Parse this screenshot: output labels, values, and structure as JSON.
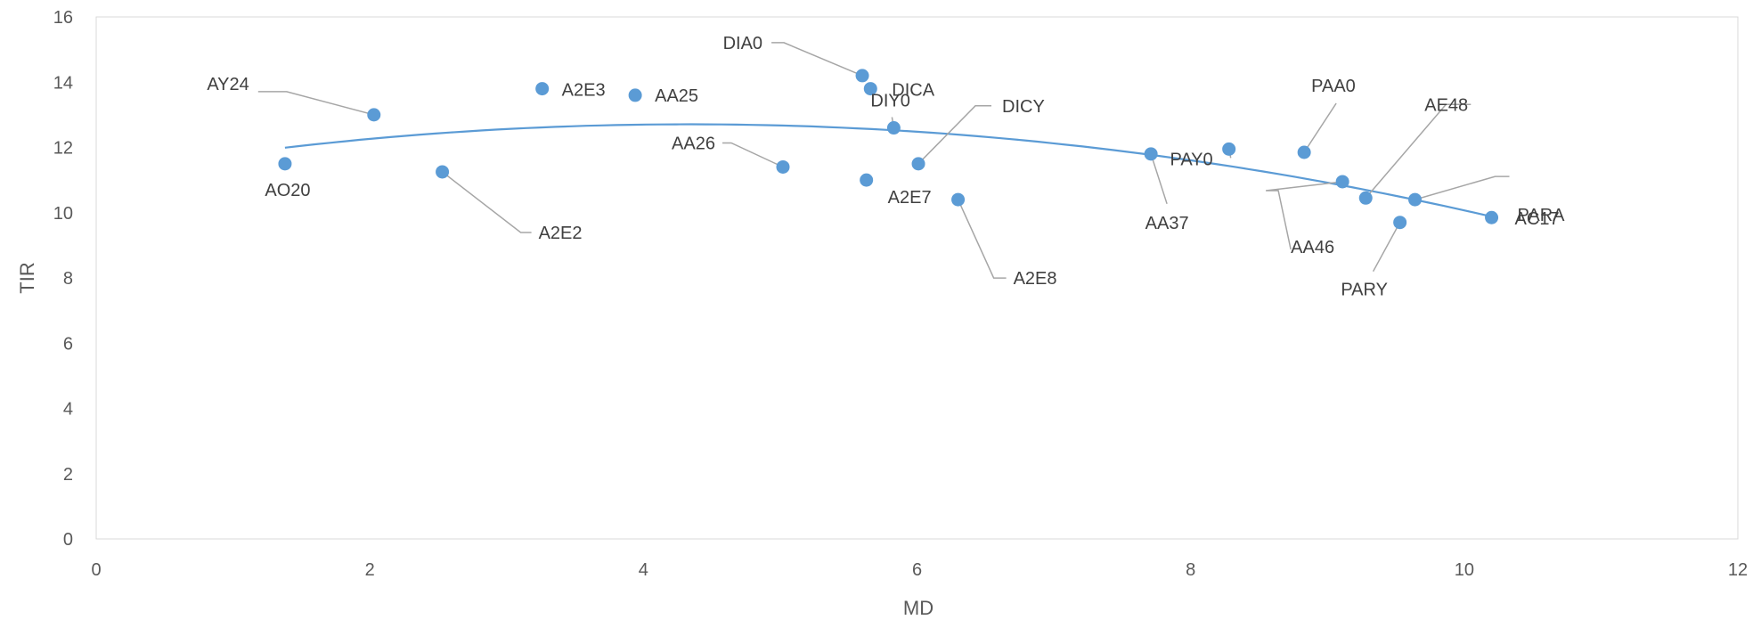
{
  "chart_data": {
    "type": "scatter",
    "title": "",
    "xlabel": "MD",
    "ylabel": "TIR",
    "xlim": [
      0,
      12
    ],
    "ylim": [
      0,
      16
    ],
    "x_ticks": [
      "0",
      "2",
      "4",
      "6",
      "8",
      "10",
      "12"
    ],
    "y_ticks": [
      "0",
      "2",
      "4",
      "6",
      "8",
      "10",
      "12",
      "14",
      "16"
    ],
    "grid": false,
    "legend": "none",
    "marker_color": "#5B9BD5",
    "trendline": {
      "type": "polynomial-2",
      "color": "#5B9BD5",
      "points": [
        {
          "x": 1.38,
          "y": 12.05
        },
        {
          "x": 3.0,
          "y": 12.5
        },
        {
          "x": 4.3,
          "y": 12.65
        },
        {
          "x": 6.0,
          "y": 12.5
        },
        {
          "x": 8.0,
          "y": 11.7
        },
        {
          "x": 10.18,
          "y": 9.85
        }
      ]
    },
    "points": [
      {
        "label": "AO20",
        "x": 1.38,
        "y": 11.5
      },
      {
        "label": "AY24",
        "x": 2.03,
        "y": 13.0
      },
      {
        "label": "A2E2",
        "x": 2.53,
        "y": 11.25
      },
      {
        "label": "A2E3",
        "x": 3.26,
        "y": 13.8
      },
      {
        "label": "AA25",
        "x": 3.94,
        "y": 13.6
      },
      {
        "label": "AA26",
        "x": 5.02,
        "y": 11.4
      },
      {
        "label": "DIA0",
        "x": 5.6,
        "y": 14.2
      },
      {
        "label": "DICA",
        "x": 5.66,
        "y": 13.8
      },
      {
        "label": "A2E7",
        "x": 5.63,
        "y": 11.0
      },
      {
        "label": "DIY0",
        "x": 5.83,
        "y": 12.6
      },
      {
        "label": "DICY",
        "x": 6.01,
        "y": 11.5
      },
      {
        "label": "A2E8",
        "x": 6.3,
        "y": 10.4
      },
      {
        "label": "AA37",
        "x": 7.71,
        "y": 11.8
      },
      {
        "label": "PAY0",
        "x": 8.28,
        "y": 11.95
      },
      {
        "label": "PAA0",
        "x": 8.83,
        "y": 11.85
      },
      {
        "label": "AA46",
        "x": 9.11,
        "y": 10.95
      },
      {
        "label": "AE48",
        "x": 9.28,
        "y": 10.45
      },
      {
        "label": "PARY",
        "x": 9.53,
        "y": 9.7
      },
      {
        "label": "PARA",
        "x": 9.64,
        "y": 10.4
      },
      {
        "label": "AC17",
        "x": 10.2,
        "y": 9.85
      }
    ]
  }
}
